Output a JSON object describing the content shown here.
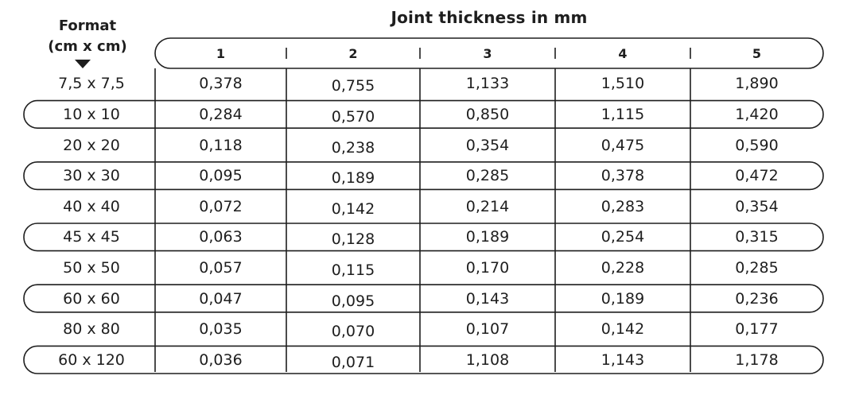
{
  "chart_data": {
    "type": "table",
    "title": "Joint thickness in mm",
    "row_header": "Format\n(cm x cm)",
    "columns": [
      "1",
      "2",
      "3",
      "4",
      "5"
    ],
    "rows": [
      {
        "format": "7,5 x 7,5",
        "values": [
          "0,378",
          "0,755",
          "1,133",
          "1,510",
          "1,890"
        ]
      },
      {
        "format": "10 x 10",
        "values": [
          "0,284",
          "0,570",
          "0,850",
          "1,115",
          "1,420"
        ]
      },
      {
        "format": "20 x 20",
        "values": [
          "0,118",
          "0,238",
          "0,354",
          "0,475",
          "0,590"
        ]
      },
      {
        "format": "30 x 30",
        "values": [
          "0,095",
          "0,189",
          "0,285",
          "0,378",
          "0,472"
        ]
      },
      {
        "format": "40 x 40",
        "values": [
          "0,072",
          "0,142",
          "0,214",
          "0,283",
          "0,354"
        ]
      },
      {
        "format": "45 x 45",
        "values": [
          "0,063",
          "0,128",
          "0,189",
          "0,254",
          "0,315"
        ]
      },
      {
        "format": "50 x 50",
        "values": [
          "0,057",
          "0,115",
          "0,170",
          "0,228",
          "0,285"
        ]
      },
      {
        "format": "60 x 60",
        "values": [
          "0,047",
          "0,095",
          "0,143",
          "0,189",
          "0,236"
        ]
      },
      {
        "format": "80 x 80",
        "values": [
          "0,035",
          "0,070",
          "0,107",
          "0,142",
          "0,177"
        ]
      },
      {
        "format": "60 x 120",
        "values": [
          "0,036",
          "0,071",
          "1,108",
          "1,143",
          "1,178"
        ]
      }
    ],
    "banded_rows": [
      1,
      3,
      5,
      7,
      9
    ],
    "colors": {
      "text": "#1e1e1e",
      "lines": "#1e1e1e",
      "background": "#ffffff"
    }
  }
}
